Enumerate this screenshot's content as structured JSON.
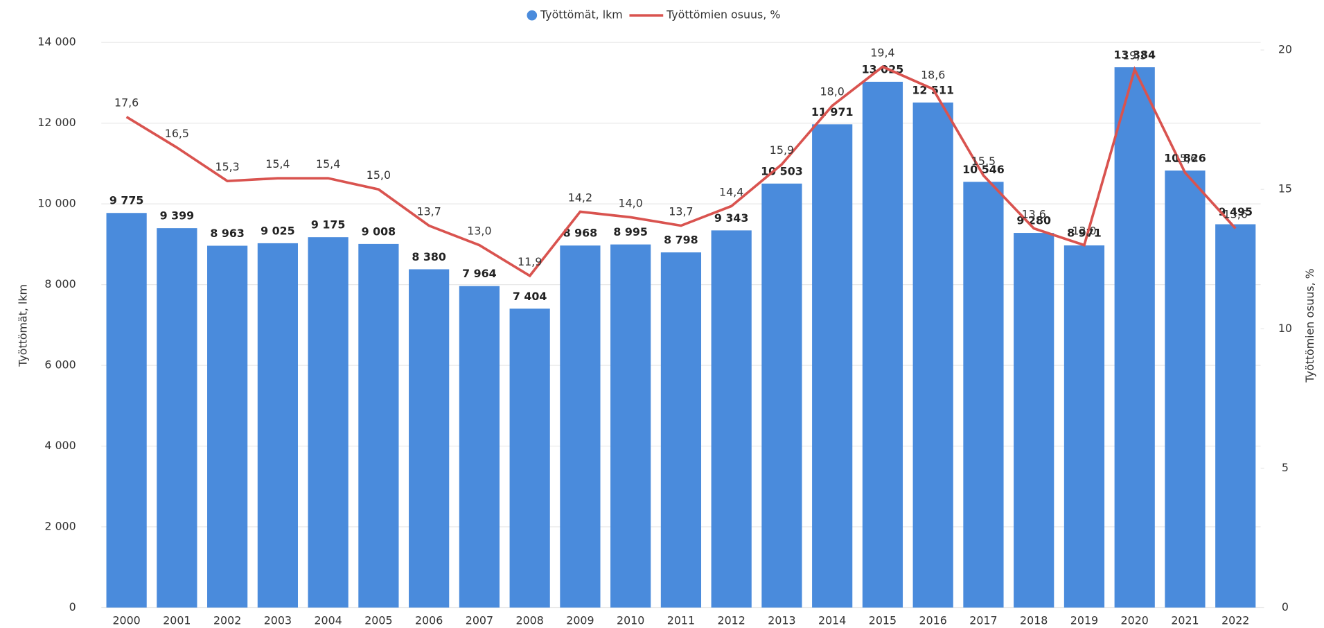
{
  "chart_data": {
    "type": "combo",
    "categories": [
      "2000",
      "2001",
      "2002",
      "2003",
      "2004",
      "2005",
      "2006",
      "2007",
      "2008",
      "2009",
      "2010",
      "2011",
      "2012",
      "2013",
      "2014",
      "2015",
      "2016",
      "2017",
      "2018",
      "2019",
      "2020",
      "2021",
      "2022"
    ],
    "series": [
      {
        "name": "Työttömät, lkm",
        "type": "bar",
        "color": "#4a8bdc",
        "values": [
          9775,
          9399,
          8963,
          9025,
          9175,
          9008,
          8380,
          7964,
          7404,
          8968,
          8995,
          8798,
          9343,
          10503,
          11971,
          13025,
          12511,
          10546,
          9280,
          8971,
          13384,
          10826,
          9495
        ],
        "value_labels": [
          "9 775",
          "9 399",
          "8 963",
          "9 025",
          "9 175",
          "9 008",
          "8 380",
          "7 964",
          "7 404",
          "8 968",
          "8 995",
          "8 798",
          "9 343",
          "10 503",
          "11 971",
          "13 025",
          "12 511",
          "10 546",
          "9 280",
          "8 971",
          "13 384",
          "10 826",
          "9 495"
        ]
      },
      {
        "name": "Työttömien osuus, %",
        "type": "line",
        "axis": "y2",
        "color": "#d9534f",
        "values": [
          17.6,
          16.5,
          15.3,
          15.4,
          15.4,
          15.0,
          13.7,
          13.0,
          11.9,
          14.2,
          14.0,
          13.7,
          14.4,
          15.9,
          18.0,
          19.4,
          18.6,
          15.5,
          13.6,
          13.0,
          19.3,
          15.6,
          13.6
        ],
        "value_labels": [
          "17,6",
          "16,5",
          "15,3",
          "15,4",
          "15,4",
          "15,0",
          "13,7",
          "13,0",
          "11,9",
          "14,2",
          "14,0",
          "13,7",
          "14,4",
          "15,9",
          "18,0",
          "19,4",
          "18,6",
          "15,5",
          "13,6",
          "13,0",
          "19,3",
          "15,6",
          "13,6"
        ]
      }
    ],
    "ylabel": "Työttömät, lkm",
    "y2label": "Työttömien osuus, %",
    "ylim": [
      0,
      14000
    ],
    "yticks": [
      0,
      {
        "value": 2000,
        "label": "2 000"
      },
      {
        "value": 4000,
        "label": "4 000"
      },
      {
        "value": 6000,
        "label": "6 000"
      },
      {
        "value": 8000,
        "label": "8 000"
      },
      {
        "value": 10000,
        "label": "10 000"
      },
      {
        "value": 12000,
        "label": "12 000"
      },
      {
        "value": 14000,
        "label": "14 000"
      }
    ],
    "y2lim": [
      0,
      20
    ],
    "y2ticks": [
      0,
      5,
      10,
      15,
      20
    ],
    "grid": true,
    "legend": "top"
  }
}
